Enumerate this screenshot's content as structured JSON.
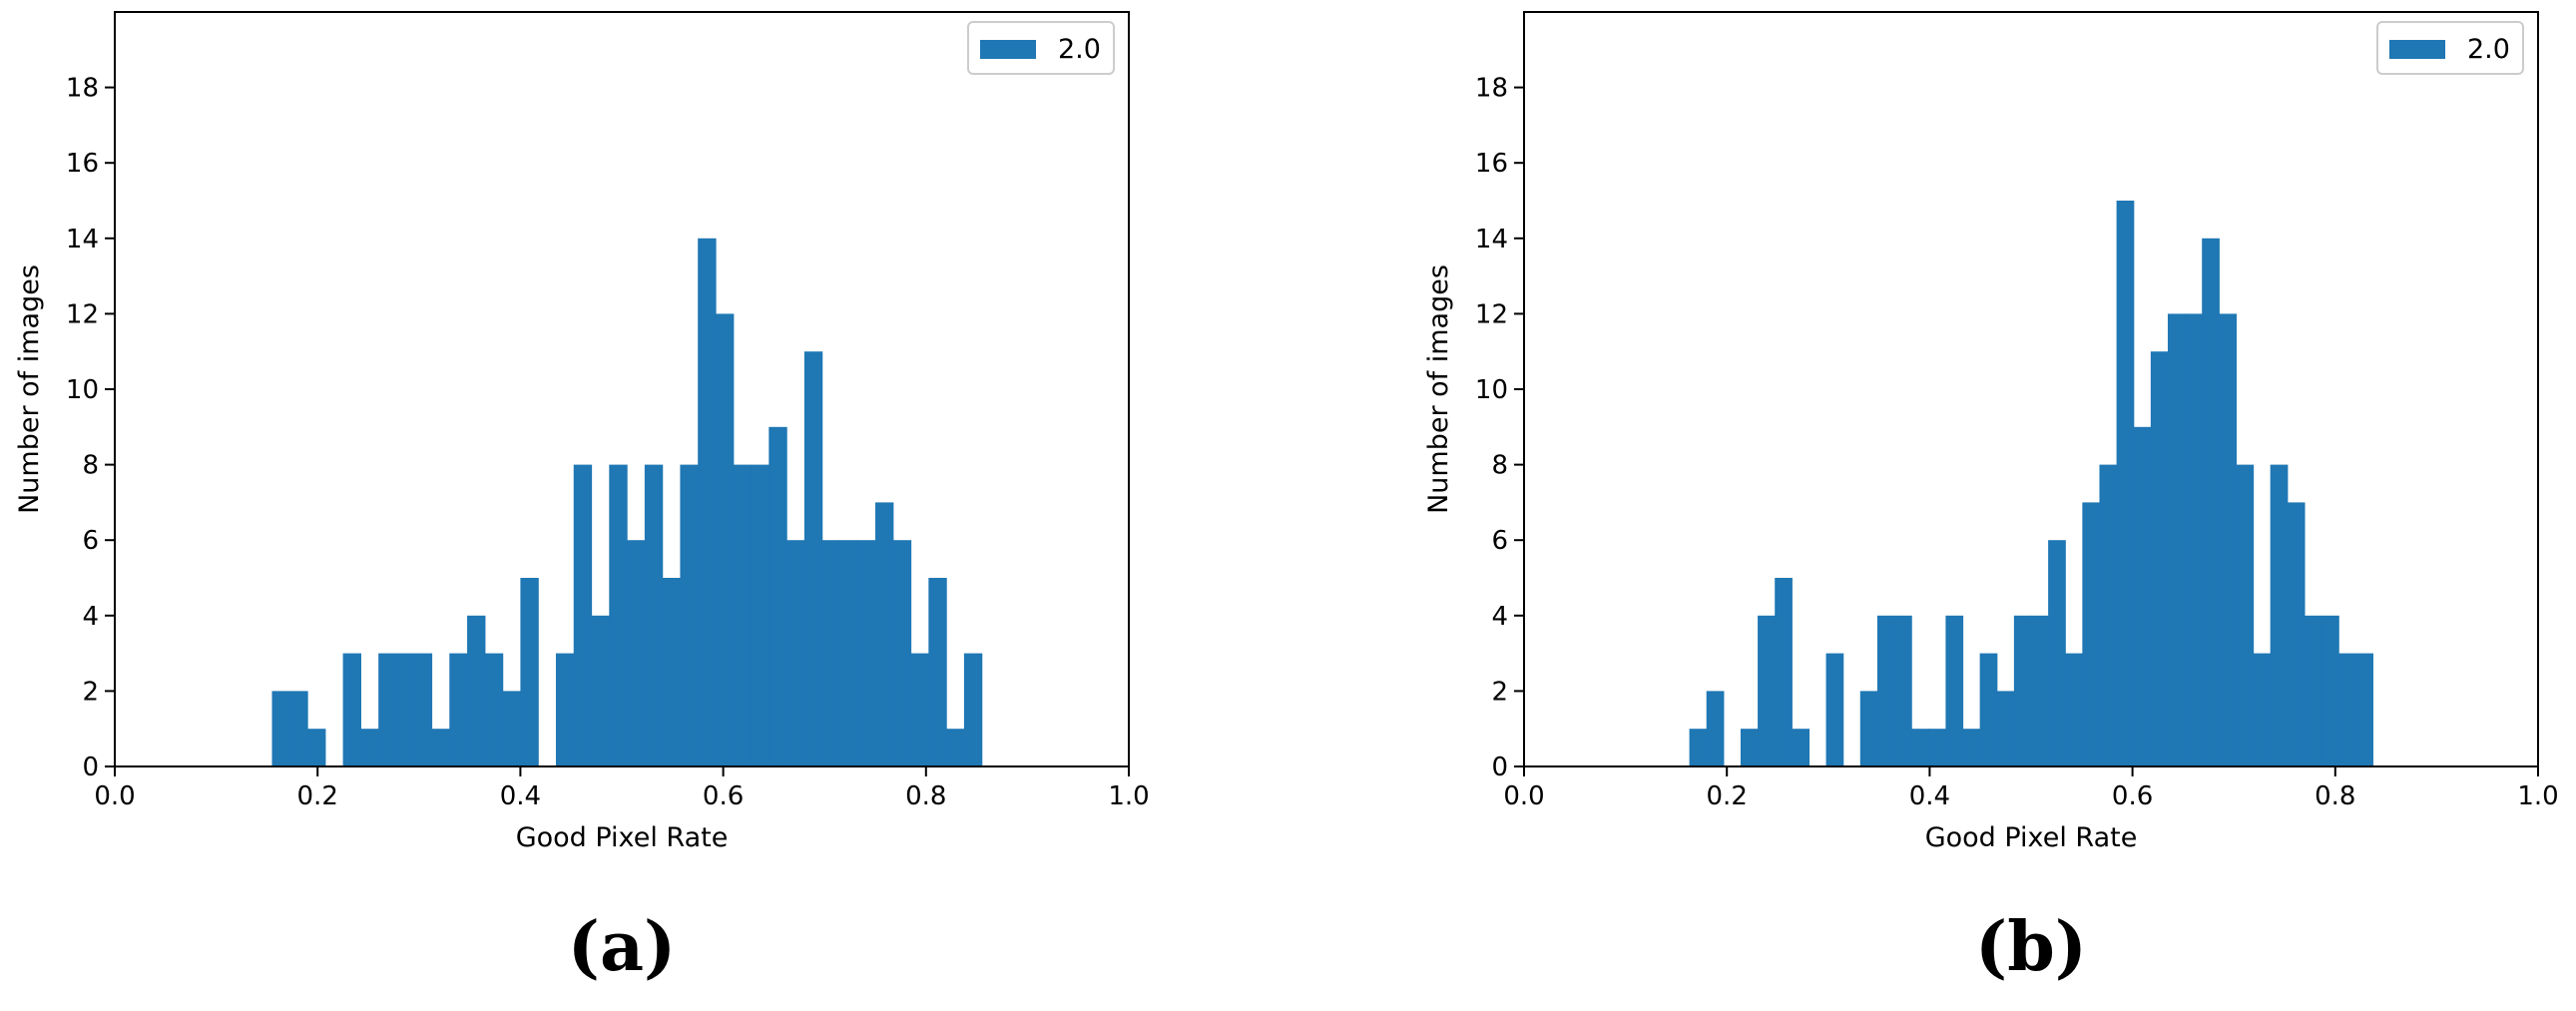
{
  "chart_data": [
    {
      "type": "bar",
      "title": "",
      "caption": "(a)",
      "xlabel": "Good Pixel Rate",
      "ylabel": "Number of images",
      "xlim": [
        0.0,
        1.0
      ],
      "ylim": [
        0,
        20
      ],
      "x_ticks": [
        "0.0",
        "0.2",
        "0.4",
        "0.6",
        "0.8",
        "1.0"
      ],
      "y_ticks": [
        "0",
        "2",
        "4",
        "6",
        "8",
        "10",
        "12",
        "14",
        "16",
        "18"
      ],
      "legend": {
        "position": "top-right",
        "label": "2.0"
      },
      "bar_color": "#1f77b4",
      "bin_start": 0.155,
      "bin_width": 0.0175,
      "values": [
        2,
        2,
        1,
        0,
        3,
        1,
        3,
        3,
        3,
        1,
        3,
        4,
        3,
        2,
        5,
        0,
        3,
        8,
        4,
        8,
        6,
        8,
        5,
        8,
        14,
        12,
        8,
        8,
        9,
        6,
        11,
        6,
        6,
        6,
        7,
        6,
        3,
        5,
        1,
        3
      ]
    },
    {
      "type": "bar",
      "title": "",
      "caption": "(b)",
      "xlabel": "Good Pixel Rate",
      "ylabel": "Number of images",
      "xlim": [
        0.0,
        1.0
      ],
      "ylim": [
        0,
        20
      ],
      "x_ticks": [
        "0.0",
        "0.2",
        "0.4",
        "0.6",
        "0.8",
        "1.0"
      ],
      "y_ticks": [
        "0",
        "2",
        "4",
        "6",
        "8",
        "10",
        "12",
        "14",
        "16",
        "18"
      ],
      "legend": {
        "position": "top-right",
        "label": "2.0"
      },
      "bar_color": "#1f77b4",
      "bin_start": 0.163,
      "bin_width": 0.01685,
      "values": [
        1,
        2,
        0,
        1,
        4,
        5,
        1,
        0,
        3,
        0,
        2,
        4,
        4,
        1,
        1,
        4,
        1,
        3,
        2,
        4,
        4,
        6,
        3,
        7,
        8,
        15,
        9,
        11,
        12,
        12,
        14,
        12,
        8,
        3,
        8,
        7,
        4,
        4,
        3,
        3
      ]
    }
  ]
}
